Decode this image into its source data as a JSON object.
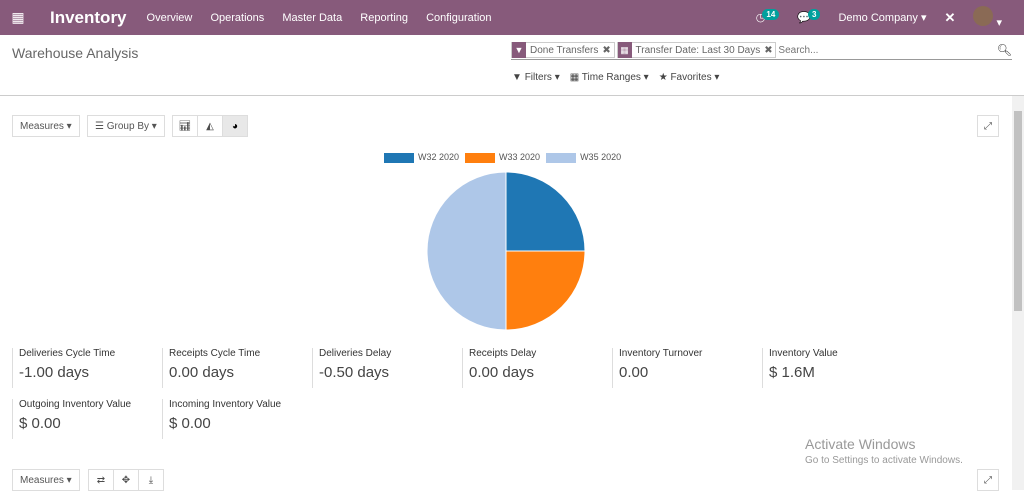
{
  "nav": {
    "app": "Inventory",
    "menu": [
      "Overview",
      "Operations",
      "Master Data",
      "Reporting",
      "Configuration"
    ],
    "activity_count": "14",
    "message_count": "3",
    "company": "Demo Company"
  },
  "cp": {
    "title": "Warehouse Analysis",
    "facets": [
      "Done Transfers",
      "Transfer Date: Last 30 Days"
    ],
    "search_placeholder": "Search...",
    "filters": "Filters",
    "time_ranges": "Time Ranges",
    "favorites": "Favorites"
  },
  "toolbar": {
    "measures": "Measures",
    "group_by": "Group By"
  },
  "chart_data": {
    "type": "pie",
    "series": [
      {
        "name": "W32 2020",
        "value": 25,
        "color": "#1f77b4"
      },
      {
        "name": "W33 2020",
        "value": 25,
        "color": "#ff7f0e"
      },
      {
        "name": "W35 2020",
        "value": 50,
        "color": "#aec7e8"
      }
    ],
    "legend": "top"
  },
  "kpis": [
    {
      "label": "Deliveries Cycle Time",
      "value": "-1.00 days"
    },
    {
      "label": "Receipts Cycle Time",
      "value": "0.00 days"
    },
    {
      "label": "Deliveries Delay",
      "value": "-0.50 days"
    },
    {
      "label": "Receipts Delay",
      "value": "0.00 days"
    },
    {
      "label": "Inventory Turnover",
      "value": "0.00"
    },
    {
      "label": "Inventory Value",
      "value": "$ 1.6M"
    },
    {
      "label": "Outgoing Inventory Value",
      "value": "$ 0.00"
    },
    {
      "label": "Incoming Inventory Value",
      "value": "$ 0.00"
    }
  ],
  "watermark": {
    "title": "Activate Windows",
    "sub": "Go to Settings to activate Windows."
  }
}
